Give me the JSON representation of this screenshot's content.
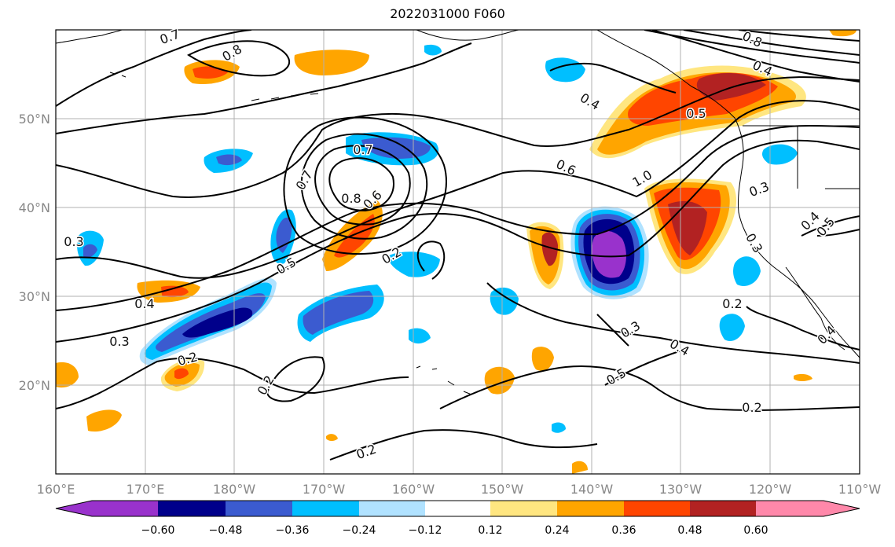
{
  "title": "2022031000 F060",
  "map": {
    "lon_ticks": [
      "160°E",
      "170°E",
      "180°W",
      "170°W",
      "160°W",
      "150°W",
      "140°W",
      "130°W",
      "120°W",
      "110°W"
    ],
    "lat_ticks": [
      "50°N",
      "40°N",
      "30°N",
      "20°N"
    ],
    "grid": true
  },
  "colorbar": {
    "ticks": [
      "−0.60",
      "−0.48",
      "−0.36",
      "−0.24",
      "−0.12",
      "0.12",
      "0.24",
      "0.36",
      "0.48",
      "0.60"
    ],
    "colors": [
      "#9932cc",
      "#00008b",
      "#3b5bd0",
      "#00bfff",
      "#b0e2ff",
      "#ffffff",
      "#ffe680",
      "#ffa500",
      "#ff4500",
      "#b22222",
      "#ff88aa"
    ]
  },
  "contour_labels": [
    "0.7",
    "0.8",
    "0.8",
    "0.4",
    "0.4",
    "0.5",
    "0.6",
    "0.7",
    "1.0",
    "0.8",
    "0.6",
    "0.7",
    "0.3",
    "0.4",
    "0.5",
    "0.4",
    "0.3",
    "0.3",
    "0.2",
    "0.2",
    "0.5",
    "0.3",
    "0.4",
    "0.5",
    "0.3",
    "0.2",
    "0.2",
    "0.2",
    "0.2",
    "0.4"
  ],
  "colors": {
    "contour": "#000000",
    "grid": "#b0b0b0",
    "coast": "#000000"
  }
}
